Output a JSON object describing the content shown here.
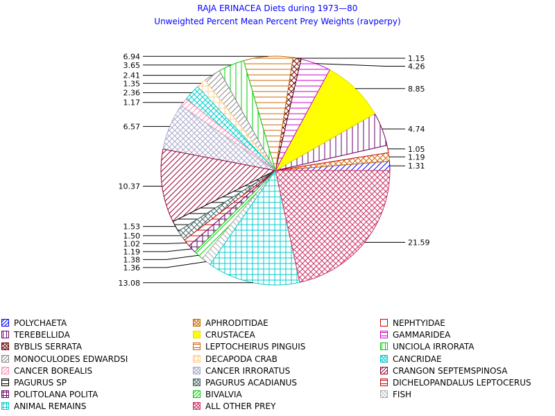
{
  "chart_data": {
    "type": "pie",
    "title": "RAJA ERINACEA Diets during 1973—80",
    "subtitle": "Unweighted Percent Mean Percent Prey  Weights (ravperpy)",
    "slices": [
      {
        "name": "POLYCHAETA",
        "value": 1.31,
        "label": "1.31",
        "color": "#0000ff",
        "pattern": "diag-fwd"
      },
      {
        "name": "APHRODITIDAE",
        "value": 1.19,
        "label": "1.19",
        "color": "#cc6600",
        "pattern": "cross-diag"
      },
      {
        "name": "NEPHTYIDAE",
        "value": 1.05,
        "label": "1.05",
        "color": "#cc0000",
        "pattern": "none"
      },
      {
        "name": "TEREBELLIDA",
        "value": 4.74,
        "label": "4.74",
        "color": "#660066",
        "pattern": "vertical"
      },
      {
        "name": "CRUSTACEA",
        "value": 8.85,
        "label": "8.85",
        "color": "#ffff00",
        "pattern": "solid"
      },
      {
        "name": "GAMMARIDEA",
        "value": 4.26,
        "label": "4.26",
        "color": "#cc00cc",
        "pattern": "horizontal"
      },
      {
        "name": "BYBLIS SERRATA",
        "value": 1.15,
        "label": "1.15",
        "color": "#660000",
        "pattern": "cross-diag"
      },
      {
        "name": "LEPTOCHEIRUS PINGUIS",
        "value": 6.94,
        "label": "6.94",
        "color": "#cc6600",
        "pattern": "horizontal"
      },
      {
        "name": "UNCIOLA IRRORATA",
        "value": 3.65,
        "label": "3.65",
        "color": "#00cc00",
        "pattern": "vertical"
      },
      {
        "name": "MONOCULODES EDWARDSI",
        "value": 2.41,
        "label": "2.41",
        "color": "#888888",
        "pattern": "diag-fwd"
      },
      {
        "name": "DECAPODA CRAB",
        "value": 1.35,
        "label": "1.35",
        "color": "#ffcc88",
        "pattern": "cross"
      },
      {
        "name": "CANCRIDAE",
        "value": 2.36,
        "label": "2.36",
        "color": "#00cccc",
        "pattern": "cross-diag"
      },
      {
        "name": "CANCER BOREALIS",
        "value": 1.17,
        "label": "1.17",
        "color": "#ff88aa",
        "pattern": "diag-fwd"
      },
      {
        "name": "CANCER IRRORATUS",
        "value": 6.57,
        "label": "6.57",
        "color": "#aaaacc",
        "pattern": "cross-diag"
      },
      {
        "name": "CRANGON SEPTEMSPINOSA",
        "value": 10.37,
        "label": "10.37",
        "color": "#990033",
        "pattern": "diag-fwd"
      },
      {
        "name": "PAGURUS SP",
        "value": 1.53,
        "label": "1.53",
        "color": "#000000",
        "pattern": "horizontal"
      },
      {
        "name": "PAGURUS ACADIANUS",
        "value": 1.5,
        "label": "1.50",
        "color": "#446666",
        "pattern": "cross-diag"
      },
      {
        "name": "DICHELOPANDALUS LEPTOCERUS",
        "value": 1.02,
        "label": "1.02",
        "color": "#cc0000",
        "pattern": "horizontal"
      },
      {
        "name": "POLITOLANA POLITA",
        "value": 1.19,
        "label": "1.19",
        "color": "#660066",
        "pattern": "cross"
      },
      {
        "name": "BIVALVIA",
        "value": 1.38,
        "label": "1.38",
        "color": "#00cc00",
        "pattern": "diag-fwd"
      },
      {
        "name": "FISH",
        "value": 1.36,
        "label": "1.36",
        "color": "#aaaaaa",
        "pattern": "diag-back"
      },
      {
        "name": "ANIMAL REMAINS",
        "value": 13.08,
        "label": "13.08",
        "color": "#00cccc",
        "pattern": "cross"
      },
      {
        "name": "ALL OTHER PREY",
        "value": 21.59,
        "label": "21.59",
        "color": "#cc3366",
        "pattern": "cross-diag"
      }
    ],
    "legend": "bottom"
  }
}
